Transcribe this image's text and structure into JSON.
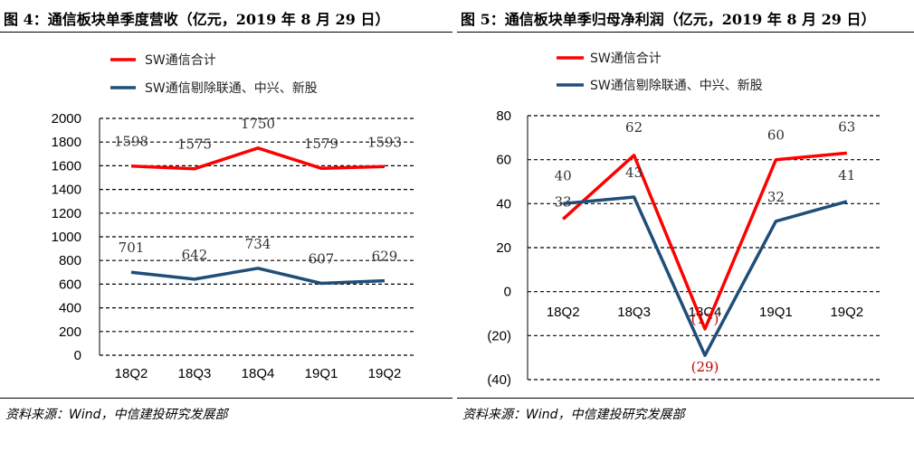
{
  "figures": [
    {
      "title": "图 4：通信板块单季度营收（亿元，2019 年 8 月 29 日）",
      "source": "资料来源：Wind，中信建投研究发展部"
    },
    {
      "title": "图 5：通信板块单季归母净利润（亿元，2019 年 8 月 29 日）",
      "source": "资料来源：Wind，中信建投研究发展部"
    }
  ],
  "colors": {
    "red": "#ff0000",
    "blue": "#1f4e79",
    "grid": "#000000"
  },
  "chart_data": [
    {
      "type": "line",
      "categories": [
        "18Q2",
        "18Q3",
        "18Q4",
        "19Q1",
        "19Q2"
      ],
      "series": [
        {
          "name": "SW通信合计",
          "values": [
            1598,
            1575,
            1750,
            1579,
            1593
          ],
          "labels": [
            "1598",
            "1575",
            "1750",
            "1579",
            "1593"
          ],
          "color": "#ff0000"
        },
        {
          "name": "SW通信剔除联通、中兴、新股",
          "values": [
            701,
            642,
            734,
            607,
            629
          ],
          "labels": [
            "701",
            "642",
            "734",
            "607",
            "629"
          ],
          "color": "#1f4e79"
        }
      ],
      "ylim": [
        0,
        2000
      ],
      "yticks": [
        0,
        200,
        400,
        600,
        800,
        1000,
        1200,
        1400,
        1600,
        1800,
        2000
      ],
      "ytick_labels": [
        "0",
        "200",
        "400",
        "600",
        "800",
        "1000",
        "1200",
        "1400",
        "1600",
        "1800",
        "2000"
      ],
      "grid": true,
      "legend": "top-left"
    },
    {
      "type": "line",
      "categories": [
        "18Q2",
        "18Q3",
        "18Q4",
        "19Q1",
        "19Q2"
      ],
      "series": [
        {
          "name": "SW通信合计",
          "values": [
            33,
            62,
            -17,
            60,
            63
          ],
          "labels": [
            "33",
            "62",
            "(17)",
            "60",
            "63"
          ],
          "color": "#ff0000"
        },
        {
          "name": "SW通信剔除联通、中兴、新股",
          "values": [
            40,
            43,
            -29,
            32,
            41
          ],
          "labels": [
            "40",
            "43",
            "(29)",
            "32",
            "41"
          ],
          "color": "#1f4e79"
        }
      ],
      "ylim": [
        -40,
        80
      ],
      "yticks": [
        -40,
        -20,
        0,
        20,
        40,
        60,
        80
      ],
      "ytick_labels": [
        "(40)",
        "(20)",
        "0",
        "20",
        "40",
        "60",
        "80"
      ],
      "grid": true,
      "legend": "top-left"
    }
  ]
}
